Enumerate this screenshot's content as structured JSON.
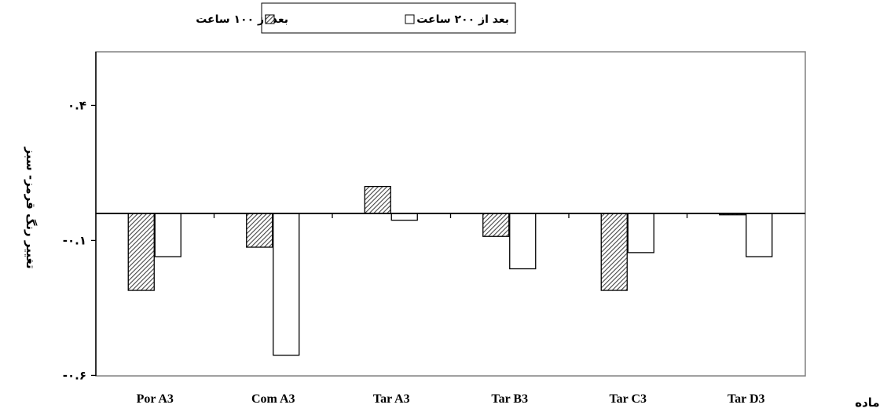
{
  "chart_data": {
    "type": "bar",
    "xlabel": "ماده",
    "ylabel": "تغییر رنگ قرمز- سبز",
    "categories": [
      "Por A3",
      "Com A3",
      "Tar A3",
      "Tar B3",
      "Tar C3",
      "Tar D3"
    ],
    "series": [
      {
        "name": "بعد از ۱۰۰ ساعت",
        "pattern": "hatched",
        "values": [
          -0.285,
          -0.125,
          0.1,
          -0.085,
          -0.285,
          -0.005
        ]
      },
      {
        "name": "بعد از ۲۰۰ ساعت",
        "pattern": "white",
        "values": [
          -0.16,
          -0.525,
          -0.025,
          -0.205,
          -0.145,
          -0.16
        ]
      }
    ],
    "ylim": [
      -0.6,
      0.6
    ],
    "yticks": [
      {
        "value": 0.4,
        "label": "۰.۴"
      },
      {
        "value": -0.1,
        "label": "-۰.۱"
      },
      {
        "value": -0.6,
        "label": "-۰.۶"
      }
    ],
    "grid": false,
    "legend_position": "top-center",
    "colors": {
      "hatch": "#555555",
      "bar_fill": "#ffffff",
      "outline": "#000000",
      "plot_border": "#808080"
    }
  }
}
